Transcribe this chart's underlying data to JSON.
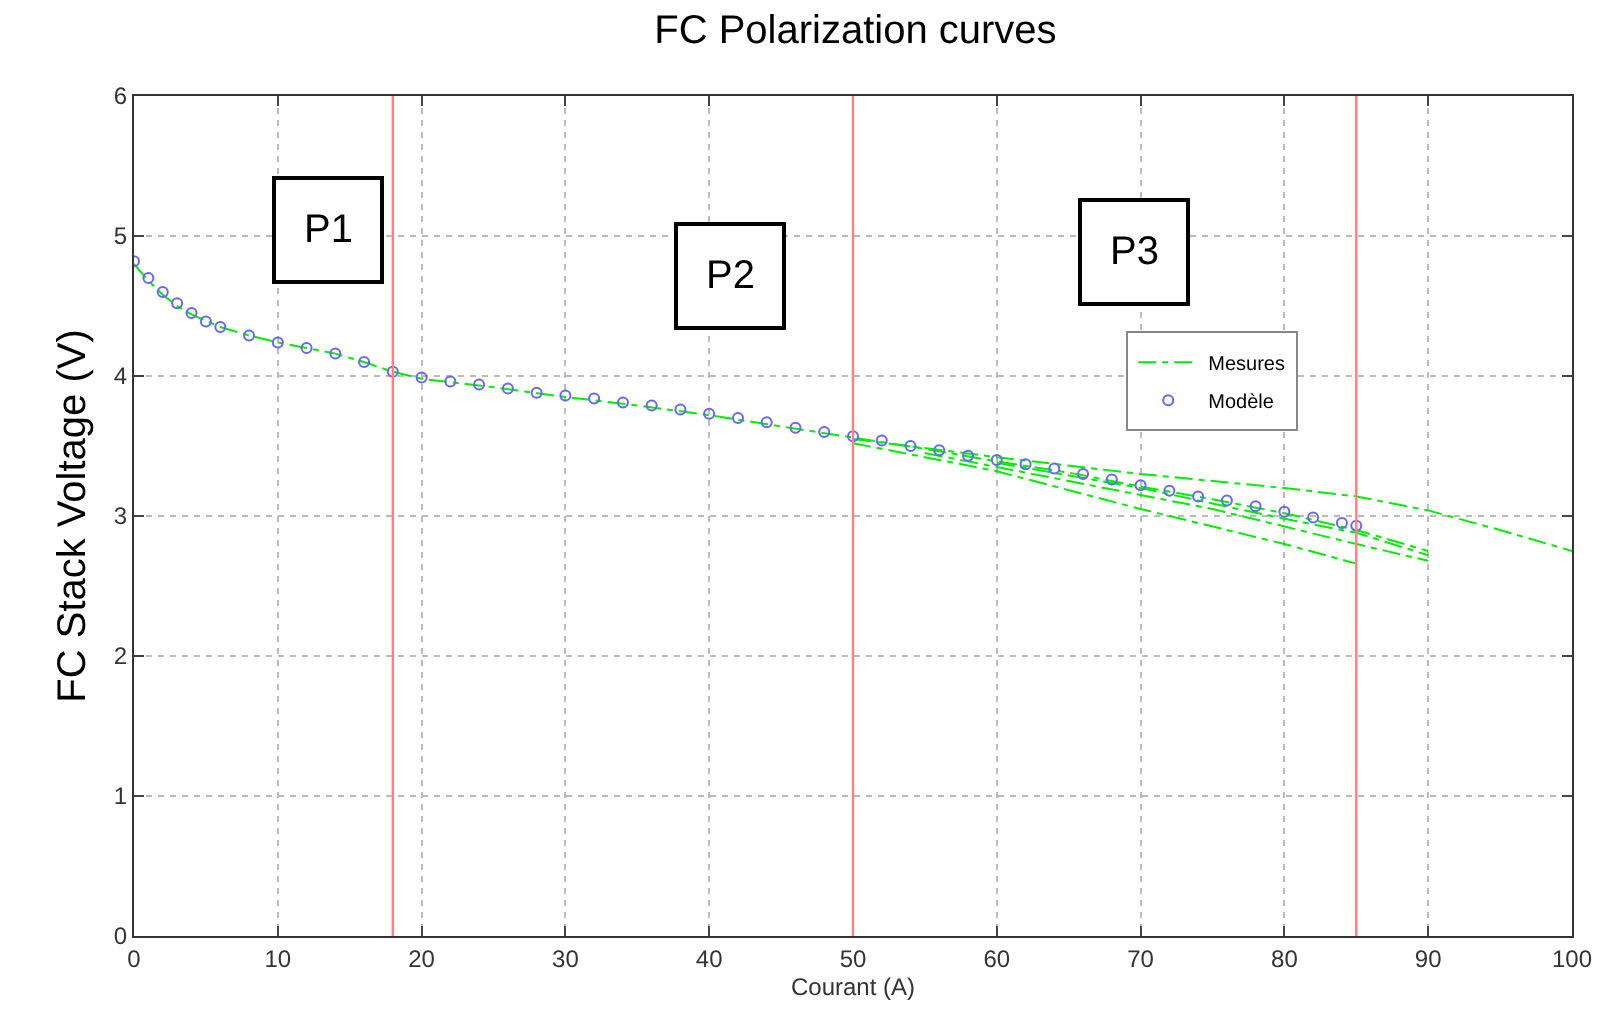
{
  "chart_data": {
    "type": "line",
    "title": "FC Polarization curves",
    "xlabel": "Courant (A)",
    "ylabel": "FC Stack Voltage (V)",
    "xlim": [
      0,
      100
    ],
    "xticks": [
      0,
      10,
      20,
      30,
      40,
      50,
      60,
      70,
      80,
      90,
      100
    ],
    "ylim": [
      0,
      6
    ],
    "yticks": [
      0,
      1,
      2,
      3,
      4,
      5,
      6
    ],
    "grid": true,
    "legend": "right",
    "series": [
      {
        "name": "Mesures",
        "color": "#00ee00",
        "line_style": "dashed",
        "marker": "none",
        "x": [
          0,
          1,
          2,
          3,
          4,
          6,
          8,
          10,
          12,
          14,
          16,
          18,
          20,
          25,
          30,
          35,
          40,
          45,
          50,
          55,
          60,
          65,
          70,
          75,
          80,
          85,
          90,
          null,
          50,
          60,
          70,
          80,
          85,
          90,
          95,
          100,
          null,
          50,
          60,
          70,
          80,
          85,
          null,
          55,
          65,
          75,
          85,
          90,
          null,
          60,
          70,
          80,
          85,
          90
        ],
        "values": [
          4.8,
          4.68,
          4.58,
          4.5,
          4.44,
          4.35,
          4.29,
          4.24,
          4.2,
          4.16,
          4.1,
          4.03,
          3.98,
          3.92,
          3.85,
          3.79,
          3.72,
          3.64,
          3.56,
          3.48,
          3.39,
          3.31,
          3.21,
          3.12,
          3.02,
          2.9,
          2.75,
          null,
          3.55,
          3.42,
          3.3,
          3.2,
          3.14,
          3.04,
          2.9,
          2.75,
          null,
          3.52,
          3.32,
          3.05,
          2.8,
          2.66,
          null,
          3.45,
          3.25,
          3.05,
          2.8,
          2.68,
          null,
          3.38,
          3.2,
          2.98,
          2.88,
          2.72
        ]
      },
      {
        "name": "Modèle",
        "color": "#6666ff",
        "type": "scatter",
        "marker": "circle",
        "x": [
          0,
          1,
          2,
          3,
          4,
          5,
          6,
          8,
          10,
          12,
          14,
          16,
          18,
          20,
          22,
          24,
          26,
          28,
          30,
          32,
          34,
          36,
          38,
          40,
          42,
          44,
          46,
          48,
          50,
          52,
          54,
          56,
          58,
          60,
          62,
          64,
          66,
          68,
          70,
          72,
          74,
          76,
          78,
          80,
          82,
          84,
          85
        ],
        "values": [
          4.82,
          4.7,
          4.6,
          4.52,
          4.45,
          4.39,
          4.35,
          4.29,
          4.24,
          4.2,
          4.16,
          4.1,
          4.03,
          3.99,
          3.96,
          3.94,
          3.91,
          3.88,
          3.86,
          3.84,
          3.81,
          3.79,
          3.76,
          3.73,
          3.7,
          3.67,
          3.63,
          3.6,
          3.57,
          3.54,
          3.5,
          3.47,
          3.43,
          3.4,
          3.37,
          3.34,
          3.3,
          3.26,
          3.22,
          3.18,
          3.14,
          3.11,
          3.07,
          3.03,
          2.99,
          2.95,
          2.93
        ]
      }
    ],
    "ref_lines": [
      {
        "axis": "x",
        "value": 18,
        "color": "#ff8080"
      },
      {
        "axis": "x",
        "value": 50,
        "color": "#ff8080"
      },
      {
        "axis": "x",
        "value": 85,
        "color": "#ff8080"
      }
    ],
    "annotations": [
      "P1",
      "P2",
      "P3"
    ]
  }
}
